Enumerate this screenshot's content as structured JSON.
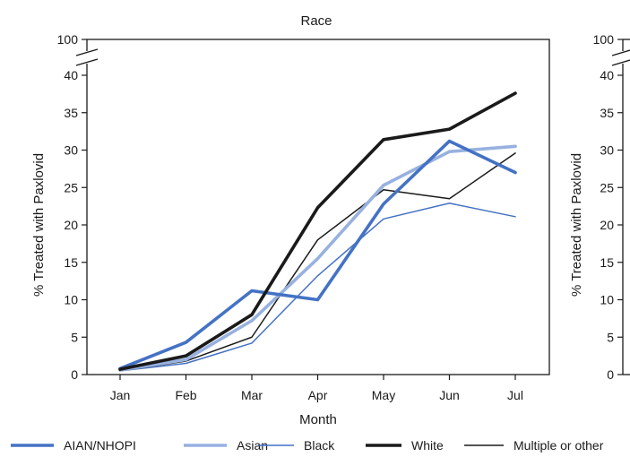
{
  "chart_data": [
    {
      "type": "line",
      "title": "Race",
      "xlabel": "Month",
      "ylabel": "% Treated with Paxlovid",
      "categories": [
        "Jan",
        "Feb",
        "Mar",
        "Apr",
        "May",
        "Jun",
        "Jul"
      ],
      "ylim": [
        0,
        40
      ],
      "yticks": [
        "0",
        "5",
        "10",
        "15",
        "20",
        "25",
        "30",
        "35",
        "40"
      ],
      "axis_break_label": "100",
      "grid": false,
      "legend_position": "bottom",
      "series": [
        {
          "name": "AIAN/NHOPI",
          "color": "#4472c4",
          "style": "thick",
          "values": [
            0.8,
            4.3,
            11.2,
            10.0,
            22.8,
            31.2,
            27.0
          ]
        },
        {
          "name": "Asian",
          "color": "#97b1e0",
          "style": "thick",
          "values": [
            0.6,
            2.0,
            7.2,
            15.5,
            25.3,
            29.8,
            30.5
          ]
        },
        {
          "name": "Black",
          "color": "#4472c4",
          "style": "thin",
          "values": [
            0.5,
            1.5,
            4.2,
            13.2,
            20.8,
            22.9,
            21.1
          ]
        },
        {
          "name": "White",
          "color": "#1a1a1a",
          "style": "thick",
          "values": [
            0.7,
            2.5,
            8.0,
            22.3,
            31.4,
            32.8,
            37.6
          ]
        },
        {
          "name": "Multiple or other",
          "color": "#1a1a1a",
          "style": "thin",
          "values": [
            0.5,
            1.8,
            5.0,
            18.0,
            24.7,
            23.5,
            29.6
          ]
        }
      ]
    },
    {
      "type": "line",
      "title": "",
      "ylabel": "% Treated with Paxlovid",
      "yticks": [
        "0",
        "5",
        "10",
        "15",
        "20",
        "25",
        "30",
        "35",
        "40"
      ],
      "axis_break_label": "100",
      "partially_visible": true
    }
  ],
  "colors": {
    "accent": "#4472c4",
    "light_accent": "#97b1e0",
    "dark": "#1a1a1a"
  }
}
